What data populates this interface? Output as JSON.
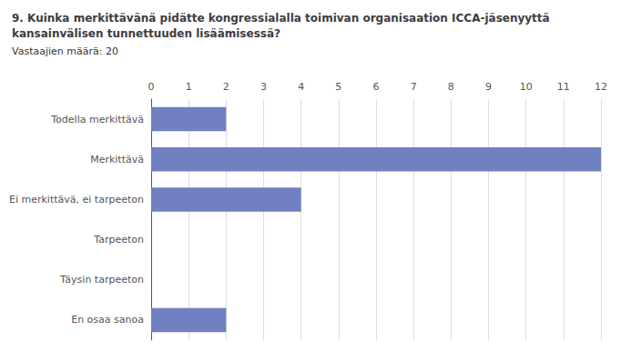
{
  "chart_data": {
    "type": "bar",
    "orientation": "horizontal",
    "title": "9. Kuinka merkittävänä pidätte kongressialalla toimivan organisaation ICCA-jäsenyyttä\nkansainvälisen tunnettuuden lisäämisessä?",
    "subtitle": "Vastaajien määrä: 20",
    "categories": [
      "Todella merkittävä",
      "Merkittävä",
      "Ei merkittävä, ei tarpeeton",
      "Tarpeeton",
      "Täysin tarpeeton",
      "En osaa sanoa"
    ],
    "values": [
      2,
      12,
      4,
      0,
      0,
      2
    ],
    "color": "#7080c0",
    "xlim": [
      0,
      12
    ],
    "xticks": [
      0,
      1,
      2,
      3,
      4,
      5,
      6,
      7,
      8,
      9,
      10,
      11,
      12
    ],
    "grid": true
  }
}
